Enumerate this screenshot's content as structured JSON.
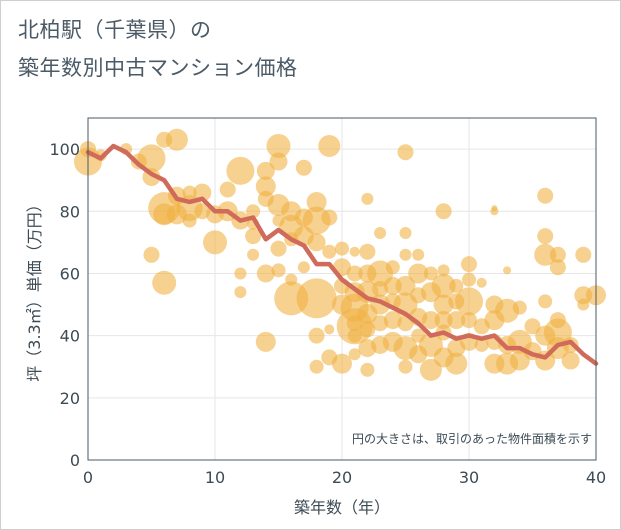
{
  "chart_data": {
    "type": "scatter",
    "title_lines": [
      "北柏駅（千葉県）の",
      "築年数別中古マンション価格"
    ],
    "xlabel": "築年数（年）",
    "ylabel": "坪（3.3㎡）単価（万円）",
    "note": "円の大きさは、取引のあった物件面積を示す",
    "xlim": [
      0,
      40
    ],
    "ylim": [
      0,
      110
    ],
    "x_ticks": [
      0,
      10,
      20,
      30,
      40
    ],
    "y_ticks": [
      0,
      20,
      40,
      60,
      80,
      100
    ],
    "grid": true,
    "colors": {
      "bubble": "#f0b040",
      "line": "#d06a5a",
      "plot_border": "#4a5a66",
      "grid": "#e6e6e6",
      "text": "#3d4b55"
    },
    "series": [
      {
        "type": "line",
        "x": [
          0,
          1,
          2,
          3,
          4,
          5,
          6,
          7,
          8,
          9,
          10,
          11,
          12,
          13,
          14,
          15,
          16,
          17,
          18,
          19,
          20,
          21,
          22,
          23,
          24,
          25,
          26,
          27,
          28,
          29,
          30,
          31,
          32,
          33,
          34,
          35,
          36,
          37,
          38,
          39,
          40
        ],
        "values": [
          99,
          97,
          101,
          99,
          95,
          92,
          90,
          84,
          83,
          84,
          80,
          80,
          77,
          78,
          71,
          74,
          71,
          69,
          63,
          63,
          58,
          55,
          52,
          51,
          49,
          47,
          44,
          40,
          41,
          39,
          40,
          39,
          40,
          36,
          36,
          34,
          33,
          37,
          38,
          34,
          31
        ]
      },
      {
        "type": "bubble",
        "points": [
          [
            0,
            96,
            14
          ],
          [
            0,
            100,
            8
          ],
          [
            1,
            98,
            6
          ],
          [
            3,
            100,
            6
          ],
          [
            4,
            96,
            8
          ],
          [
            5,
            97,
            14
          ],
          [
            5,
            91,
            9
          ],
          [
            5,
            66,
            8
          ],
          [
            6,
            103,
            8
          ],
          [
            6,
            81,
            16
          ],
          [
            6,
            79,
            11
          ],
          [
            6,
            57,
            12
          ],
          [
            7,
            103,
            11
          ],
          [
            7,
            85,
            9
          ],
          [
            7,
            79,
            10
          ],
          [
            8,
            81,
            13
          ],
          [
            8,
            86,
            7
          ],
          [
            8,
            77,
            7
          ],
          [
            9,
            86,
            9
          ],
          [
            9,
            80,
            8
          ],
          [
            10,
            70,
            12
          ],
          [
            10,
            79,
            9
          ],
          [
            11,
            87,
            8
          ],
          [
            11,
            80,
            10
          ],
          [
            12,
            93,
            14
          ],
          [
            12,
            77,
            9
          ],
          [
            12,
            60,
            6
          ],
          [
            12,
            54,
            6
          ],
          [
            13,
            80,
            7
          ],
          [
            13,
            72,
            8
          ],
          [
            13,
            66,
            6
          ],
          [
            13,
            76,
            6
          ],
          [
            14,
            60,
            9
          ],
          [
            14,
            84,
            8
          ],
          [
            14,
            38,
            10
          ],
          [
            14,
            88,
            10
          ],
          [
            14,
            93,
            9
          ],
          [
            15,
            101,
            12
          ],
          [
            15,
            96,
            9
          ],
          [
            15,
            82,
            11
          ],
          [
            15,
            68,
            8
          ],
          [
            15,
            61,
            7
          ],
          [
            15,
            77,
            6
          ],
          [
            16,
            80,
            10
          ],
          [
            16,
            75,
            12
          ],
          [
            16,
            52,
            17
          ],
          [
            16,
            71,
            7
          ],
          [
            16,
            58,
            6
          ],
          [
            17,
            94,
            8
          ],
          [
            17,
            78,
            9
          ],
          [
            17,
            72,
            10
          ],
          [
            17,
            62,
            6
          ],
          [
            18,
            83,
            10
          ],
          [
            18,
            77,
            14
          ],
          [
            18,
            70,
            9
          ],
          [
            18,
            52,
            20
          ],
          [
            18,
            40,
            8
          ],
          [
            18,
            30,
            7
          ],
          [
            19,
            101,
            11
          ],
          [
            19,
            78,
            8
          ],
          [
            19,
            67,
            7
          ],
          [
            19,
            42,
            5
          ],
          [
            19,
            33,
            8
          ],
          [
            20,
            68,
            7
          ],
          [
            20,
            62,
            9
          ],
          [
            20,
            56,
            8
          ],
          [
            20,
            50,
            10
          ],
          [
            20,
            31,
            10
          ],
          [
            21,
            67,
            5
          ],
          [
            21,
            60,
            8
          ],
          [
            21,
            54,
            10
          ],
          [
            21,
            49,
            14
          ],
          [
            21,
            44,
            8
          ],
          [
            21,
            40,
            7
          ],
          [
            21,
            34,
            6
          ],
          [
            21,
            43,
            18
          ],
          [
            22,
            84,
            6
          ],
          [
            22,
            67,
            8
          ],
          [
            22,
            60,
            9
          ],
          [
            22,
            54,
            11
          ],
          [
            22,
            47,
            10
          ],
          [
            22,
            42,
            8
          ],
          [
            22,
            36,
            9
          ],
          [
            22,
            29,
            7
          ],
          [
            23,
            73,
            6
          ],
          [
            23,
            60,
            13
          ],
          [
            23,
            55,
            8
          ],
          [
            23,
            50,
            10
          ],
          [
            23,
            44,
            8
          ],
          [
            23,
            37,
            9
          ],
          [
            24,
            62,
            7
          ],
          [
            24,
            56,
            9
          ],
          [
            24,
            51,
            8
          ],
          [
            24,
            45,
            9
          ],
          [
            24,
            38,
            10
          ],
          [
            25,
            99,
            8
          ],
          [
            25,
            73,
            6
          ],
          [
            25,
            66,
            6
          ],
          [
            25,
            56,
            10
          ],
          [
            25,
            50,
            12
          ],
          [
            25,
            44,
            8
          ],
          [
            25,
            36,
            12
          ],
          [
            25,
            30,
            7
          ],
          [
            26,
            66,
            6
          ],
          [
            26,
            60,
            10
          ],
          [
            26,
            53,
            8
          ],
          [
            26,
            46,
            9
          ],
          [
            26,
            40,
            7
          ],
          [
            26,
            34,
            9
          ],
          [
            27,
            60,
            7
          ],
          [
            27,
            54,
            10
          ],
          [
            27,
            45,
            9
          ],
          [
            27,
            37,
            12
          ],
          [
            27,
            29,
            11
          ],
          [
            28,
            80,
            8
          ],
          [
            28,
            61,
            6
          ],
          [
            28,
            56,
            12
          ],
          [
            28,
            50,
            10
          ],
          [
            28,
            45,
            9
          ],
          [
            28,
            41,
            8
          ],
          [
            28,
            33,
            10
          ],
          [
            29,
            56,
            7
          ],
          [
            29,
            51,
            8
          ],
          [
            29,
            45,
            9
          ],
          [
            29,
            36,
            9
          ],
          [
            29,
            31,
            11
          ],
          [
            30,
            63,
            8
          ],
          [
            30,
            58,
            7
          ],
          [
            30,
            51,
            14
          ],
          [
            30,
            45,
            8
          ],
          [
            30,
            38,
            9
          ],
          [
            31,
            57,
            5
          ],
          [
            31,
            43,
            8
          ],
          [
            31,
            37,
            7
          ],
          [
            32,
            81,
            3
          ],
          [
            32,
            80,
            4
          ],
          [
            32,
            50,
            9
          ],
          [
            32,
            45,
            10
          ],
          [
            32,
            38,
            8
          ],
          [
            32,
            31,
            10
          ],
          [
            33,
            61,
            4
          ],
          [
            33,
            48,
            12
          ],
          [
            33,
            37,
            9
          ],
          [
            33,
            31,
            11
          ],
          [
            34,
            49,
            7
          ],
          [
            34,
            38,
            12
          ],
          [
            34,
            32,
            10
          ],
          [
            35,
            43,
            8
          ],
          [
            35,
            35,
            9
          ],
          [
            36,
            85,
            8
          ],
          [
            36,
            72,
            8
          ],
          [
            36,
            66,
            11
          ],
          [
            36,
            51,
            7
          ],
          [
            36,
            40,
            10
          ],
          [
            36,
            32,
            10
          ],
          [
            37,
            66,
            8
          ],
          [
            37,
            62,
            8
          ],
          [
            37,
            45,
            8
          ],
          [
            37,
            41,
            14
          ],
          [
            37,
            36,
            11
          ],
          [
            38,
            37,
            8
          ],
          [
            38,
            32,
            9
          ],
          [
            39,
            66,
            8
          ],
          [
            39,
            53,
            9
          ],
          [
            39,
            50,
            6
          ],
          [
            40,
            53,
            10
          ]
        ]
      }
    ]
  }
}
